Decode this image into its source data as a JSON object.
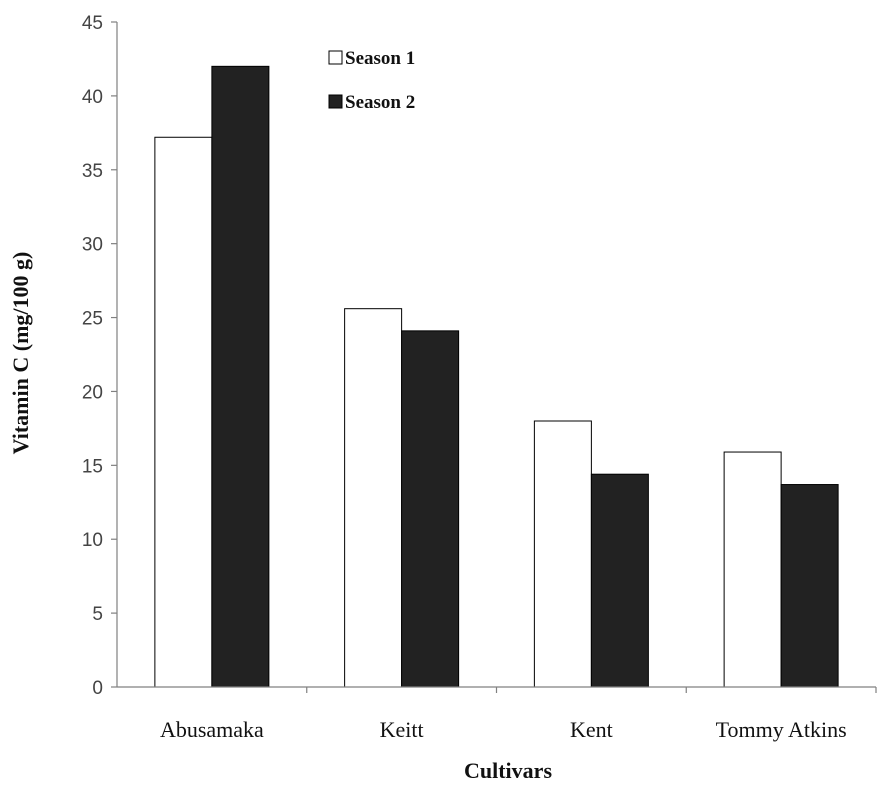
{
  "chart_data": {
    "type": "bar",
    "title": "",
    "xlabel": "Cultivars",
    "ylabel": "Vitamin C (mg/100 g)",
    "categories": [
      "Abusamaka",
      "Keitt",
      "Kent",
      "Tommy Atkins"
    ],
    "series": [
      {
        "name": "Season 1",
        "values": [
          37.2,
          25.6,
          18.0,
          15.9
        ],
        "color": "#ffffff"
      },
      {
        "name": "Season 2",
        "values": [
          42.0,
          24.1,
          14.4,
          13.7
        ],
        "color": "#222222"
      }
    ],
    "yticks": [
      "0",
      "5",
      "10",
      "15",
      "20",
      "25",
      "30",
      "35",
      "40",
      "45"
    ],
    "ylim": [
      0,
      45
    ],
    "grid": false,
    "legend_position": "top-center"
  }
}
